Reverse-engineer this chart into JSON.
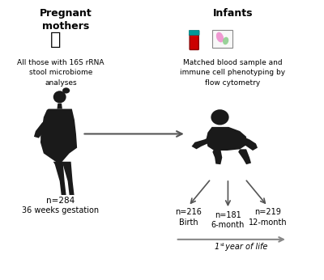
{
  "bg_color": "#ffffff",
  "title_left": "Pregnant\nmothers",
  "title_right": "Infants",
  "text_left": "All those with 16S rRNA\nstool microbiome\nanalyses",
  "text_right": "Matched blood sample and\nimmune cell phenotyping by\nflow cytometry",
  "n_mother": "n=284",
  "label_mother": "36 weeks gestation",
  "n_birth": "n=216",
  "n_6month": "n=181",
  "n_12month": "n=219",
  "label_birth": "Birth",
  "label_6month": "6-month",
  "label_12month": "12-month",
  "timeline_label": "1st year of life",
  "silhouette_color": "#1a1a1a",
  "arrow_color": "#555555"
}
